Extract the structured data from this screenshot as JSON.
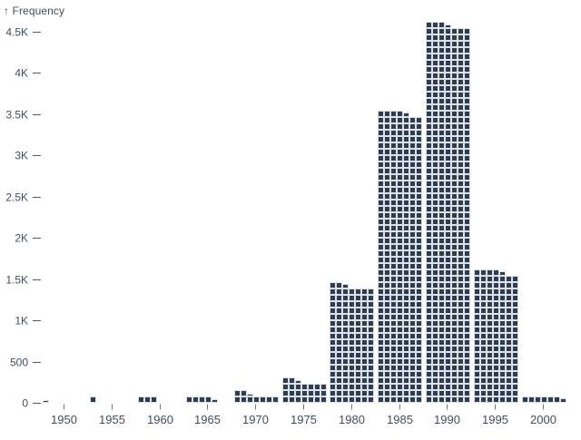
{
  "colors": {
    "background": "#ffffff",
    "cell_fill": "#2e3d51",
    "cell_slot": "#dde2e7",
    "text": "#3f4e64",
    "axis_tick_line": "#6e7a89",
    "y_dash": "#4a596e"
  },
  "chart_data": {
    "type": "bar",
    "style": "waffle-histogram",
    "title": "",
    "y_axis_title": "↑ Frequency",
    "xlabel": "",
    "ylabel": "Frequency",
    "bin_width_years": 5,
    "unit_per_cell": 11,
    "columns_per_bar": 7,
    "categories": [
      1950,
      1955,
      1960,
      1965,
      1970,
      1975,
      1980,
      1985,
      1990,
      1995,
      2000
    ],
    "values": [
      2,
      11,
      33,
      48,
      102,
      258,
      1414,
      3516,
      4581,
      1590,
      72
    ],
    "x_tick_labels": [
      "1950",
      "1955",
      "1960",
      "1965",
      "1970",
      "1975",
      "1980",
      "1985",
      "1990",
      "1995",
      "2000"
    ],
    "y_ticks": [
      {
        "value": 0,
        "label": "0"
      },
      {
        "value": 500,
        "label": "500"
      },
      {
        "value": 1000,
        "label": "1K"
      },
      {
        "value": 1500,
        "label": "1.5K"
      },
      {
        "value": 2000,
        "label": "2K"
      },
      {
        "value": 2500,
        "label": "2.5K"
      },
      {
        "value": 3000,
        "label": "3K"
      },
      {
        "value": 3500,
        "label": "3.5K"
      },
      {
        "value": 4000,
        "label": "4K"
      },
      {
        "value": 4500,
        "label": "4.5K"
      }
    ],
    "xlim": [
      1947.5,
      2002.5
    ],
    "ylim": [
      0,
      4500
    ],
    "grid": false,
    "legend": "none"
  }
}
